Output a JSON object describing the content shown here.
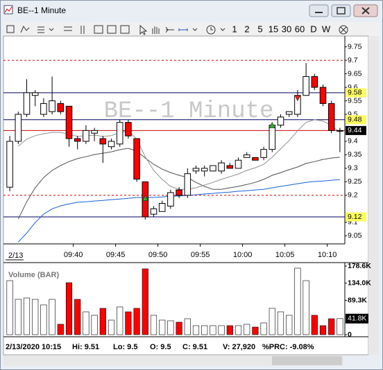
{
  "window": {
    "title": "BE--1 Minute",
    "toolbar": [
      "1",
      "2",
      "5",
      "15",
      "30",
      "60",
      "D",
      "W"
    ]
  },
  "chart_data": [
    {
      "type": "candlestick",
      "watermark": "BE--1 Minute",
      "date_label": "2/13",
      "categories": [
        null,
        null,
        null,
        null,
        null,
        null,
        null,
        null,
        "09:40",
        null,
        null,
        null,
        null,
        "09:45",
        null,
        null,
        null,
        null,
        "09:50",
        null,
        null,
        null,
        null,
        "09:55",
        null,
        null,
        null,
        null,
        "10:00",
        null,
        null,
        null,
        null,
        "10:05",
        null,
        null,
        null,
        null,
        "10:10",
        null
      ],
      "open": [
        9.23,
        9.4,
        9.5,
        9.57,
        9.5,
        9.51,
        9.54,
        9.53,
        9.41,
        9.4,
        9.43,
        9.41,
        9.38,
        9.39,
        9.47,
        9.41,
        9.25,
        9.13,
        9.14,
        9.16,
        9.22,
        9.2,
        9.29,
        9.29,
        9.29,
        9.29,
        9.31,
        9.3,
        9.34,
        9.34,
        9.34,
        9.37,
        9.46,
        9.5,
        9.5,
        9.57,
        9.64,
        9.6,
        9.54,
        9.44
      ],
      "high": [
        9.42,
        9.51,
        9.63,
        9.59,
        9.56,
        9.64,
        9.55,
        9.53,
        9.42,
        9.46,
        9.45,
        9.42,
        9.41,
        9.48,
        9.48,
        9.41,
        9.25,
        9.16,
        9.18,
        9.22,
        9.23,
        9.3,
        9.31,
        9.31,
        9.31,
        9.33,
        9.32,
        9.34,
        9.36,
        9.34,
        9.38,
        9.47,
        9.5,
        9.51,
        9.59,
        9.69,
        9.65,
        9.61,
        9.55,
        9.45
      ],
      "low": [
        9.215,
        9.39,
        9.49,
        9.53,
        9.49,
        9.5,
        9.5,
        9.38,
        9.37,
        9.39,
        9.4,
        9.32,
        9.37,
        9.38,
        9.41,
        9.25,
        9.11,
        9.12,
        9.14,
        9.15,
        9.19,
        9.19,
        9.28,
        9.27,
        9.29,
        9.28,
        9.3,
        9.3,
        9.34,
        9.33,
        9.33,
        9.36,
        9.45,
        9.49,
        9.49,
        9.57,
        9.59,
        9.53,
        9.43,
        9.36
      ],
      "close": [
        9.4,
        9.5,
        9.58,
        9.58,
        9.54,
        9.55,
        9.51,
        9.41,
        9.4,
        9.44,
        9.44,
        9.39,
        9.4,
        9.47,
        9.42,
        9.26,
        9.12,
        9.15,
        9.17,
        9.21,
        9.2,
        9.28,
        9.3,
        9.3,
        9.31,
        9.32,
        9.3,
        9.33,
        9.35,
        9.33,
        9.37,
        9.46,
        9.49,
        9.51,
        9.57,
        9.64,
        9.6,
        9.54,
        9.44,
        9.44
      ],
      "up_color": "#ffffff",
      "down_color": "#ff0000",
      "lines": [
        {
          "color": "#1560d8",
          "values": [
            null,
            9.027,
            9.06,
            9.099,
            9.13,
            9.15,
            9.161,
            9.168,
            9.174,
            9.176,
            9.179,
            9.181,
            9.184,
            9.186,
            9.189,
            9.192,
            9.192,
            9.192,
            9.194,
            9.197,
            9.197,
            9.2,
            9.202,
            9.205,
            9.207,
            9.21,
            9.212,
            9.215,
            9.217,
            9.22,
            9.222,
            9.228,
            9.233,
            9.238,
            9.243,
            9.248,
            9.251,
            9.253,
            9.256,
            9.258
          ]
        },
        {
          "color": "#505050",
          "values": [
            null,
            9.112,
            9.176,
            9.228,
            9.266,
            9.292,
            9.31,
            9.325,
            9.336,
            9.343,
            9.351,
            9.356,
            9.361,
            9.369,
            9.374,
            9.364,
            9.338,
            9.315,
            9.297,
            9.284,
            9.274,
            9.266,
            9.248,
            9.233,
            9.222,
            9.222,
            9.228,
            9.233,
            9.24,
            9.248,
            9.259,
            9.274,
            9.284,
            9.295,
            9.305,
            9.318,
            9.325,
            9.333,
            9.338,
            9.341
          ]
        },
        {
          "color": "#909090",
          "values": [
            null,
            9.382,
            9.408,
            9.421,
            9.428,
            9.433,
            9.433,
            9.426,
            9.418,
            9.421,
            9.423,
            9.418,
            9.421,
            9.433,
            9.439,
            9.408,
            9.343,
            9.292,
            9.259,
            9.233,
            9.222,
            9.222,
            9.228,
            9.238,
            9.248,
            9.259,
            9.269,
            9.279,
            9.292,
            9.302,
            9.315,
            9.341,
            9.372,
            9.403,
            9.439,
            9.47,
            9.48,
            9.475,
            9.459,
            9.433
          ]
        }
      ],
      "levels": [
        {
          "value": 9.7,
          "color": "#d00000",
          "style": "dashed",
          "tag": false
        },
        {
          "value": 9.58,
          "color": "#000060",
          "style": "solid",
          "tag": true,
          "tag_color": "#ffff60",
          "tag_text_color": "#000000"
        },
        {
          "value": 9.48,
          "color": "#000060",
          "style": "solid",
          "tag": true,
          "tag_color": "#ffff60",
          "tag_text_color": "#000000"
        },
        {
          "value": 9.44,
          "color": "#d00000",
          "style": "solid",
          "tag": true,
          "tag_color": "#000000",
          "tag_text_color": "#ffffff"
        },
        {
          "value": 9.2,
          "color": "#d00000",
          "style": "dashed",
          "tag": false
        },
        {
          "value": 9.12,
          "color": "#000060",
          "style": "solid",
          "tag": true,
          "tag_color": "#ffff60",
          "tag_text_color": "#000000"
        }
      ],
      "markers": [
        {
          "index": 16,
          "value": 9.19,
          "direction": "up",
          "color": "#30b030"
        },
        {
          "index": 31,
          "value": 9.46,
          "direction": "up",
          "color": "#30b030"
        },
        {
          "index": 34,
          "value": 9.56,
          "direction": "down",
          "color": "#e02020"
        }
      ],
      "ylim": [
        9.02,
        9.79
      ],
      "yticks": [
        9.05,
        9.1,
        9.2,
        9.25,
        9.3,
        9.35,
        9.4,
        9.5,
        9.55,
        9.6,
        9.65,
        9.7,
        9.75
      ]
    },
    {
      "type": "bar",
      "title": "Volume (BAR)",
      "values": [
        140700,
        92000,
        95600,
        92000,
        77600,
        92000,
        27100,
        135300,
        92000,
        59500,
        50500,
        68600,
        37900,
        72200,
        59500,
        68600,
        171400,
        50500,
        37900,
        36100,
        32500,
        41500,
        23500,
        23500,
        23500,
        23500,
        23500,
        23500,
        27100,
        19800,
        30700,
        68600,
        59500,
        50500,
        173200,
        140700,
        50500,
        23500,
        41500,
        41800
      ],
      "up_color": "#ffffff",
      "down_color": "#ff0000",
      "ylim": [
        0,
        178600
      ],
      "yticks": [
        {
          "value": 178600,
          "label": "178.6K"
        },
        {
          "value": 134000,
          "label": "134.0K"
        },
        {
          "value": 89300,
          "label": "89.3K"
        },
        0
      ],
      "current_tag": {
        "value": 41800,
        "label": "41.8K"
      }
    }
  ],
  "status": [
    "2/13/2020 10:15",
    "Hi: 9.51",
    "Lo: 9.5",
    "O: 9.5",
    "C: 9.51",
    "V: 27,920",
    "%PRC: -9.08%"
  ]
}
